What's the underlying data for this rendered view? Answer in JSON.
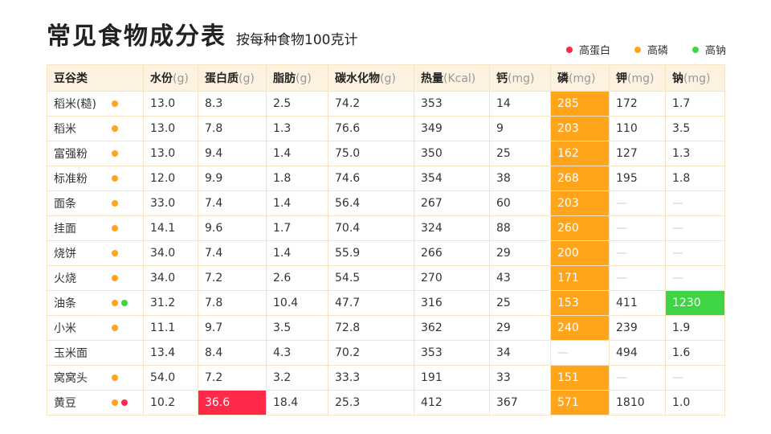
{
  "title": "常见食物成分表",
  "subtitle": "按每种食物100克计",
  "colors": {
    "protein": "#ff2a4a",
    "phosphorus": "#ffa41b",
    "sodium": "#3fd444"
  },
  "legend": [
    {
      "label": "高蛋白",
      "key": "protein"
    },
    {
      "label": "高磷",
      "key": "phosphorus"
    },
    {
      "label": "高钠",
      "key": "sodium"
    }
  ],
  "headers": [
    {
      "name": "豆谷类",
      "unit": ""
    },
    {
      "name": "水份",
      "unit": "(g)"
    },
    {
      "name": "蛋白质",
      "unit": "(g)"
    },
    {
      "name": "脂肪",
      "unit": "(g)"
    },
    {
      "name": "碳水化物",
      "unit": "(g)"
    },
    {
      "name": "热量",
      "unit": "(Kcal)"
    },
    {
      "name": "钙",
      "unit": "(mg)"
    },
    {
      "name": "磷",
      "unit": "(mg)"
    },
    {
      "name": "钾",
      "unit": "(mg)"
    },
    {
      "name": "钠",
      "unit": "(mg)"
    }
  ],
  "rows": [
    {
      "name": "稻米(糙)",
      "flags": [
        "phosphorus"
      ],
      "values": [
        "13.0",
        "8.3",
        "2.5",
        "74.2",
        "353",
        "14",
        "285",
        "172",
        "1.7"
      ]
    },
    {
      "name": "稻米",
      "flags": [
        "phosphorus"
      ],
      "values": [
        "13.0",
        "7.8",
        "1.3",
        "76.6",
        "349",
        "9",
        "203",
        "110",
        "3.5"
      ]
    },
    {
      "name": "富强粉",
      "flags": [
        "phosphorus"
      ],
      "values": [
        "13.0",
        "9.4",
        "1.4",
        "75.0",
        "350",
        "25",
        "162",
        "127",
        "1.3"
      ]
    },
    {
      "name": "标准粉",
      "flags": [
        "phosphorus"
      ],
      "values": [
        "12.0",
        "9.9",
        "1.8",
        "74.6",
        "354",
        "38",
        "268",
        "195",
        "1.8"
      ]
    },
    {
      "name": "面条",
      "flags": [
        "phosphorus"
      ],
      "values": [
        "33.0",
        "7.4",
        "1.4",
        "56.4",
        "267",
        "60",
        "203",
        "—",
        "—"
      ]
    },
    {
      "name": "挂面",
      "flags": [
        "phosphorus"
      ],
      "values": [
        "14.1",
        "9.6",
        "1.7",
        "70.4",
        "324",
        "88",
        "260",
        "—",
        "—"
      ]
    },
    {
      "name": "烧饼",
      "flags": [
        "phosphorus"
      ],
      "values": [
        "34.0",
        "7.4",
        "1.4",
        "55.9",
        "266",
        "29",
        "200",
        "—",
        "—"
      ]
    },
    {
      "name": "火烧",
      "flags": [
        "phosphorus"
      ],
      "values": [
        "34.0",
        "7.2",
        "2.6",
        "54.5",
        "270",
        "43",
        "171",
        "—",
        "—"
      ]
    },
    {
      "name": "油条",
      "flags": [
        "phosphorus",
        "sodium"
      ],
      "values": [
        "31.2",
        "7.8",
        "10.4",
        "47.7",
        "316",
        "25",
        "153",
        "411",
        "1230"
      ]
    },
    {
      "name": "小米",
      "flags": [
        "phosphorus"
      ],
      "values": [
        "11.1",
        "9.7",
        "3.5",
        "72.8",
        "362",
        "29",
        "240",
        "239",
        "1.9"
      ]
    },
    {
      "name": "玉米面",
      "flags": [],
      "values": [
        "13.4",
        "8.4",
        "4.3",
        "70.2",
        "353",
        "34",
        "—",
        "494",
        "1.6"
      ]
    },
    {
      "name": "窝窝头",
      "flags": [
        "phosphorus"
      ],
      "values": [
        "54.0",
        "7.2",
        "3.2",
        "33.3",
        "191",
        "33",
        "151",
        "—",
        "—"
      ]
    },
    {
      "name": "黄豆",
      "flags": [
        "phosphorus",
        "protein"
      ],
      "values": [
        "10.2",
        "36.6",
        "18.4",
        "25.3",
        "412",
        "367",
        "571",
        "1810",
        "1.0"
      ]
    }
  ]
}
